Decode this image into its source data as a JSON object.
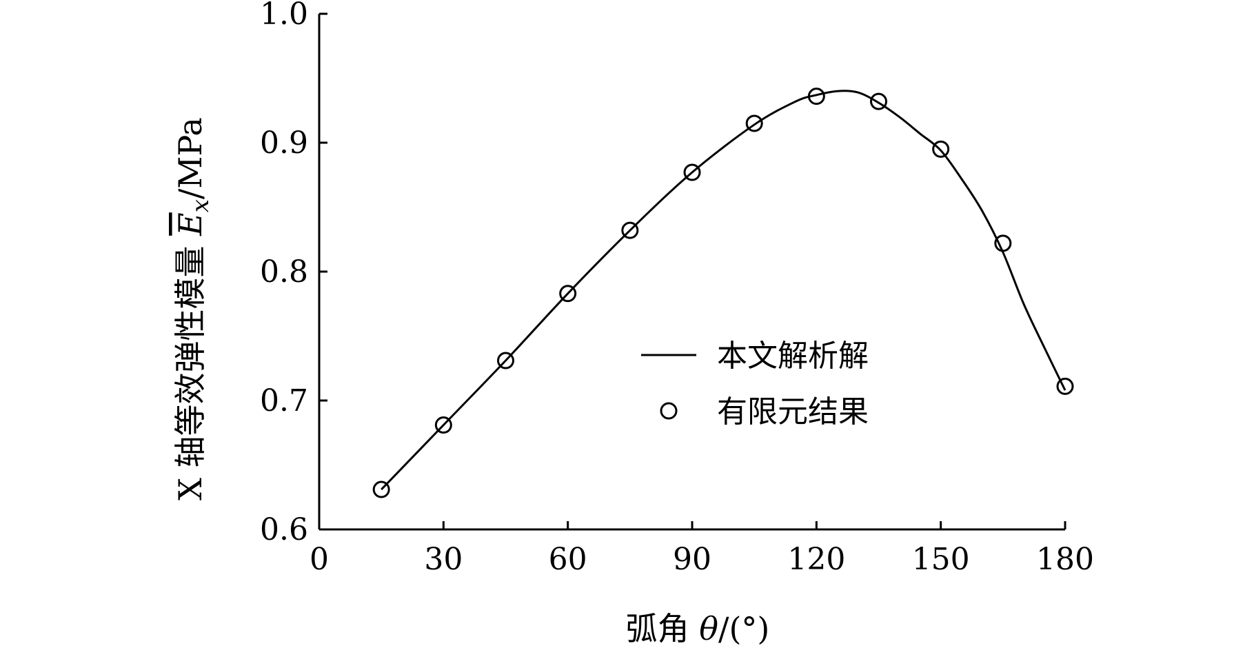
{
  "chart_data": {
    "type": "line",
    "xlabel": {
      "prefix": "弧角 ",
      "symbol": "θ",
      "suffix": "/(°)"
    },
    "ylabel": {
      "prefix": "X 轴等效弹性模量 ",
      "symbol": "E",
      "subscript": "x",
      "suffix": "/MPa"
    },
    "xlim": [
      0,
      180
    ],
    "ylim": [
      0.6,
      1.0
    ],
    "x_ticks": [
      0,
      30,
      60,
      90,
      120,
      150,
      180
    ],
    "x_tick_labels": [
      "0",
      "30",
      "60",
      "90",
      "120",
      "150",
      "180"
    ],
    "y_ticks": [
      0.6,
      0.7,
      0.8,
      0.9,
      1.0
    ],
    "y_tick_labels": [
      "0.6",
      "0.7",
      "0.8",
      "0.9",
      "1.0"
    ],
    "grid": false,
    "legend_position": "center-right",
    "series": [
      {
        "name": "本文解析解",
        "kind": "line",
        "color": "#000000",
        "x": [
          15,
          30,
          45,
          60,
          75,
          90,
          105,
          115,
          120,
          125,
          130,
          135,
          140,
          145,
          150,
          155,
          160,
          165,
          170,
          175,
          180
        ],
        "y": [
          0.631,
          0.681,
          0.731,
          0.783,
          0.832,
          0.877,
          0.914,
          0.932,
          0.937,
          0.94,
          0.939,
          0.931,
          0.92,
          0.907,
          0.894,
          0.872,
          0.847,
          0.815,
          0.775,
          0.741,
          0.708
        ]
      },
      {
        "name": "有限元结果",
        "kind": "marker",
        "marker": "open-circle",
        "color": "#000000",
        "x": [
          15,
          30,
          45,
          60,
          75,
          90,
          105,
          120,
          135,
          150,
          165,
          180
        ],
        "y": [
          0.631,
          0.681,
          0.731,
          0.783,
          0.832,
          0.877,
          0.915,
          0.936,
          0.932,
          0.895,
          0.822,
          0.711
        ]
      }
    ]
  }
}
